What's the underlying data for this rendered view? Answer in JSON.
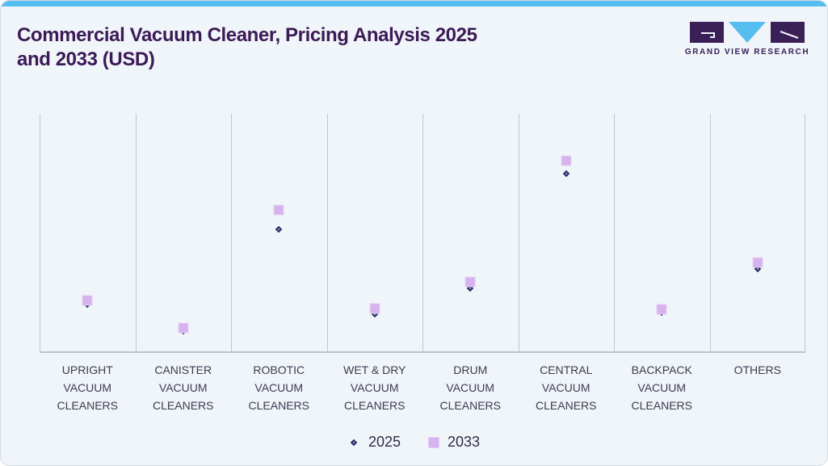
{
  "header": {
    "title": "Commercial Vacuum Cleaner, Pricing Analysis 2025 and 2033 (USD)",
    "brand_name": "GRAND VIEW RESEARCH"
  },
  "colors": {
    "top_bar": "#56bdf0",
    "card_background": "#f0f5f9",
    "card_border": "#d5dbe1",
    "title_text": "#3b1a56",
    "axis_line": "#bcc2c9",
    "gridline": "#c2c7cd",
    "category_label_text": "#3c3c50",
    "legend_text": "#2e2e44",
    "series_2025_fill": "#58c5f2",
    "series_2025_border": "#3a2a5e",
    "series_2033_fill": "#d6b3ed",
    "series_2033_border": "#e5d0f6",
    "logo_purple": "#3b2058",
    "logo_blue": "#56bdf0"
  },
  "chart_data": {
    "type": "scatter",
    "title": "Commercial Vacuum Cleaner, Pricing Analysis 2025 and 2033 (USD)",
    "x_categories": [
      "UPRIGHT VACUUM CLEANERS",
      "CANISTER VACUUM CLEANERS",
      "ROBOTIC VACUUM CLEANERS",
      "WET & DRY VACUUM CLEANERS",
      "DRUM VACUUM CLEANERS",
      "CENTRAL VACUUM CLEANERS",
      "BACKPACK VACUUM CLEANERS",
      "OTHERS"
    ],
    "x_category_lines": [
      [
        "UPRIGHT",
        "VACUUM",
        "CLEANERS"
      ],
      [
        "CANISTER",
        "VACUUM",
        "CLEANERS"
      ],
      [
        "ROBOTIC",
        "VACUUM",
        "CLEANERS"
      ],
      [
        "WET & DRY",
        "VACUUM",
        "CLEANERS"
      ],
      [
        "DRUM",
        "VACUUM",
        "CLEANERS"
      ],
      [
        "CENTRAL",
        "VACUUM",
        "CLEANERS"
      ],
      [
        "BACKPACK",
        "VACUUM",
        "CLEANERS"
      ],
      [
        "OTHERS"
      ]
    ],
    "series": [
      {
        "name": "2025",
        "marker": "diamond",
        "fill": "#58c5f2",
        "border": "#3a2a5e",
        "values_pct_of_plot_height": [
          19.8,
          8.4,
          51.5,
          15.5,
          26.4,
          75.0,
          16.2,
          34.8
        ]
      },
      {
        "name": "2033",
        "marker": "square",
        "fill": "#d6b3ed",
        "border": "#e5d0f6",
        "values_pct_of_plot_height": [
          21.6,
          9.8,
          59.5,
          18.2,
          29.1,
          80.4,
          17.6,
          37.5
        ]
      }
    ],
    "y_axis": {
      "tick_labels_visible": false
    },
    "grid": "vertical-category-separators-only",
    "legend_position": "bottom-center"
  },
  "legend": {
    "items": [
      {
        "label": "2025",
        "marker": "diamond"
      },
      {
        "label": "2033",
        "marker": "square"
      }
    ]
  }
}
